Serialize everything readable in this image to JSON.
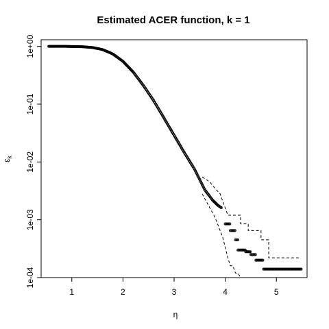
{
  "chart_data": {
    "type": "scatter",
    "title": "Estimated ACER function, k = 1",
    "xlabel": "η",
    "ylabel_base": "ε",
    "ylabel_sub": "k",
    "x_ticks": [
      "1",
      "2",
      "3",
      "4",
      "5"
    ],
    "x_tick_values": [
      1,
      2,
      3,
      4,
      5
    ],
    "y_ticks": [
      "1e-04",
      "1e-03",
      "1e-02",
      "1e-01",
      "1e+00"
    ],
    "y_tick_values": [
      0.0001,
      0.001,
      0.01,
      0.1,
      1
    ],
    "xlim": [
      0.4,
      5.6
    ],
    "ylim": [
      0.0001,
      1.3
    ],
    "y_scale": "log",
    "grid": false,
    "estimate_curve": {
      "x": [
        0.55,
        0.9,
        1.2,
        1.4,
        1.6,
        1.8,
        2.0,
        2.2,
        2.4,
        2.6,
        2.8,
        3.0,
        3.2,
        3.4,
        3.6,
        3.75,
        3.85,
        3.93
      ],
      "y": [
        1.0,
        0.998,
        0.985,
        0.955,
        0.88,
        0.74,
        0.55,
        0.36,
        0.21,
        0.115,
        0.058,
        0.029,
        0.0145,
        0.0075,
        0.0033,
        0.0022,
        0.0018,
        0.0016
      ]
    },
    "estimate_steps": [
      {
        "x": 4.0,
        "y": 0.00085
      },
      {
        "x": 4.1,
        "y": 0.00065
      },
      {
        "x": 4.2,
        "y": 0.00045
      },
      {
        "x": 4.25,
        "y": 0.0003
      },
      {
        "x": 4.33,
        "y": 0.0003
      },
      {
        "x": 4.4,
        "y": 0.00028
      },
      {
        "x": 4.5,
        "y": 0.00025
      },
      {
        "x": 4.6,
        "y": 0.0002
      },
      {
        "x": 4.75,
        "y": 0.00014
      },
      {
        "x": 5.5,
        "y": 0.00014
      }
    ],
    "upper_band": {
      "x": [
        3.55,
        3.7,
        3.8,
        3.9,
        4.0,
        4.05,
        4.3,
        4.3,
        4.45,
        4.45,
        4.7,
        4.7,
        4.85,
        4.85,
        5.45
      ],
      "y": [
        0.0055,
        0.0045,
        0.0035,
        0.0028,
        0.0016,
        0.0012,
        0.0012,
        0.00085,
        0.00085,
        0.00065,
        0.00065,
        0.00045,
        0.00045,
        0.00022,
        0.00022
      ]
    },
    "lower_band": {
      "x": [
        3.55,
        3.7,
        3.8,
        3.95,
        4.05,
        4.1,
        4.15,
        4.2,
        4.25,
        4.3,
        4.35,
        4.4
      ],
      "y": [
        0.0028,
        0.0016,
        0.0011,
        0.0005,
        0.00022,
        0.00016,
        0.00016,
        0.00012,
        0.00012,
        0.0001,
        0.0001,
        0.0001
      ]
    }
  }
}
